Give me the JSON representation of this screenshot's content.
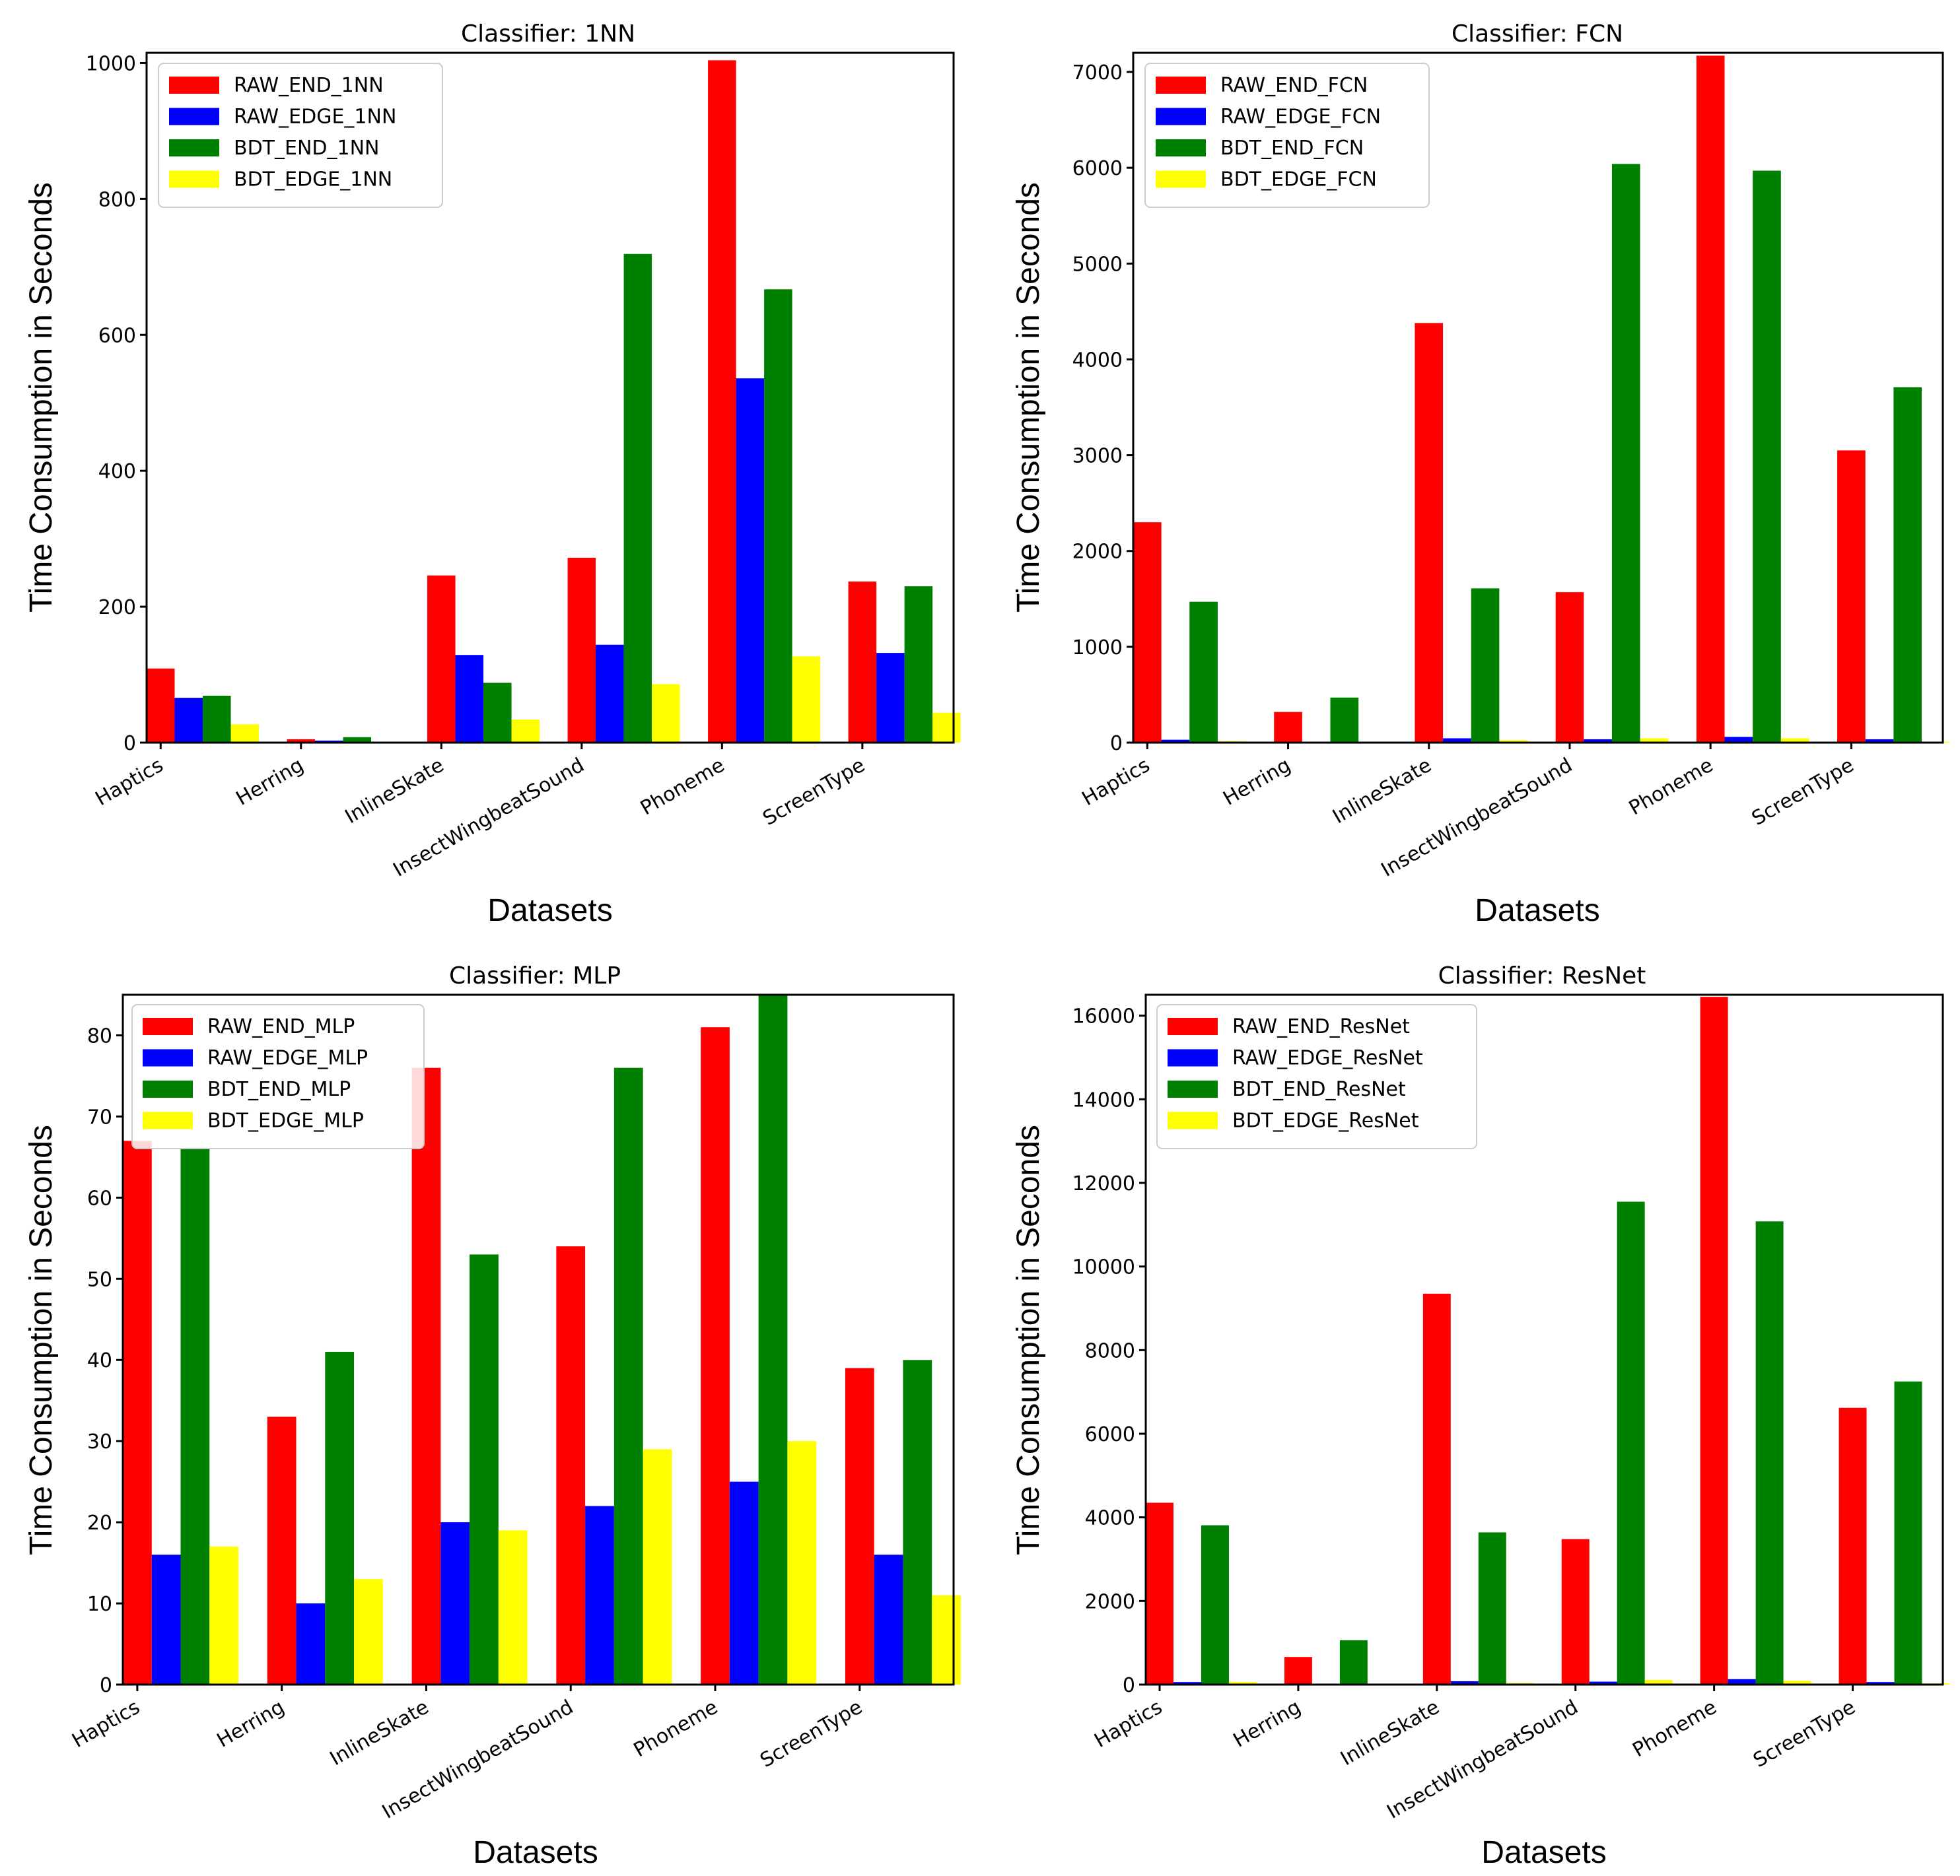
{
  "chart_data": [
    {
      "type": "bar",
      "title": "Classifier: 1NN",
      "xlabel": "Datasets",
      "ylabel": "Time Consumption in Seconds",
      "categories": [
        "Haptics",
        "Herring",
        "InlineSkate",
        "InsectWingbeatSound",
        "Phoneme",
        "ScreenType"
      ],
      "ylim": [
        0,
        1015
      ],
      "yticks": [
        0,
        200,
        400,
        600,
        800,
        1000
      ],
      "legend_position": "top-left",
      "series": [
        {
          "name": "RAW_END_1NN",
          "color": "#ff0000",
          "values": [
            109,
            5,
            246,
            272,
            1004,
            237
          ]
        },
        {
          "name": "RAW_EDGE_1NN",
          "color": "#0000ff",
          "values": [
            66,
            3,
            129,
            144,
            536,
            132
          ]
        },
        {
          "name": "BDT_END_1NN",
          "color": "#008000",
          "values": [
            69,
            8,
            88,
            719,
            667,
            230
          ]
        },
        {
          "name": "BDT_EDGE_1NN",
          "color": "#ffff00",
          "values": [
            27,
            1,
            34,
            86,
            127,
            44
          ]
        }
      ]
    },
    {
      "type": "bar",
      "title": "Classifier: FCN",
      "xlabel": "Datasets",
      "ylabel": "Time Consumption in Seconds",
      "categories": [
        "Haptics",
        "Herring",
        "InlineSkate",
        "InsectWingbeatSound",
        "Phoneme",
        "ScreenType"
      ],
      "ylim": [
        0,
        7200
      ],
      "yticks": [
        0,
        1000,
        2000,
        3000,
        4000,
        5000,
        6000,
        7000
      ],
      "legend_position": "top-left",
      "series": [
        {
          "name": "RAW_END_FCN",
          "color": "#ff0000",
          "values": [
            2300,
            320,
            4380,
            1570,
            7170,
            3050
          ]
        },
        {
          "name": "RAW_EDGE_FCN",
          "color": "#0000ff",
          "values": [
            30,
            5,
            45,
            35,
            60,
            35
          ]
        },
        {
          "name": "BDT_END_FCN",
          "color": "#008000",
          "values": [
            1470,
            470,
            1610,
            6040,
            5970,
            3710
          ]
        },
        {
          "name": "BDT_EDGE_FCN",
          "color": "#ffff00",
          "values": [
            15,
            5,
            25,
            45,
            45,
            10
          ]
        }
      ]
    },
    {
      "type": "bar",
      "title": "Classifier: MLP",
      "xlabel": "Datasets",
      "ylabel": "Time Consumption in Seconds",
      "categories": [
        "Haptics",
        "Herring",
        "InlineSkate",
        "InsectWingbeatSound",
        "Phoneme",
        "ScreenType"
      ],
      "ylim": [
        0,
        85
      ],
      "yticks": [
        0,
        10,
        20,
        30,
        40,
        50,
        60,
        70,
        80
      ],
      "legend_position": "top-left",
      "series": [
        {
          "name": "RAW_END_MLP",
          "color": "#ff0000",
          "values": [
            67,
            33,
            76,
            54,
            81,
            39
          ]
        },
        {
          "name": "RAW_EDGE_MLP",
          "color": "#0000ff",
          "values": [
            16,
            10,
            20,
            22,
            25,
            16
          ]
        },
        {
          "name": "BDT_END_MLP",
          "color": "#008000",
          "values": [
            66,
            41,
            53,
            76,
            85,
            40
          ]
        },
        {
          "name": "BDT_EDGE_MLP",
          "color": "#ffff00",
          "values": [
            17,
            13,
            19,
            29,
            30,
            11
          ]
        }
      ]
    },
    {
      "type": "bar",
      "title": "Classifier: ResNet",
      "xlabel": "Datasets",
      "ylabel": "Time Consumption in Seconds",
      "categories": [
        "Haptics",
        "Herring",
        "InlineSkate",
        "InsectWingbeatSound",
        "Phoneme",
        "ScreenType"
      ],
      "ylim": [
        0,
        16500
      ],
      "yticks": [
        0,
        2000,
        4000,
        6000,
        8000,
        10000,
        12000,
        14000,
        16000
      ],
      "legend_position": "top-left",
      "series": [
        {
          "name": "RAW_END_ResNet",
          "color": "#ff0000",
          "values": [
            4350,
            660,
            9350,
            3480,
            16450,
            6620
          ]
        },
        {
          "name": "RAW_EDGE_ResNet",
          "color": "#0000ff",
          "values": [
            60,
            15,
            80,
            70,
            130,
            60
          ]
        },
        {
          "name": "BDT_END_ResNet",
          "color": "#008000",
          "values": [
            3810,
            1060,
            3640,
            11550,
            11080,
            7250
          ]
        },
        {
          "name": "BDT_EDGE_ResNet",
          "color": "#ffff00",
          "values": [
            60,
            15,
            40,
            110,
            90,
            30
          ]
        }
      ]
    }
  ]
}
